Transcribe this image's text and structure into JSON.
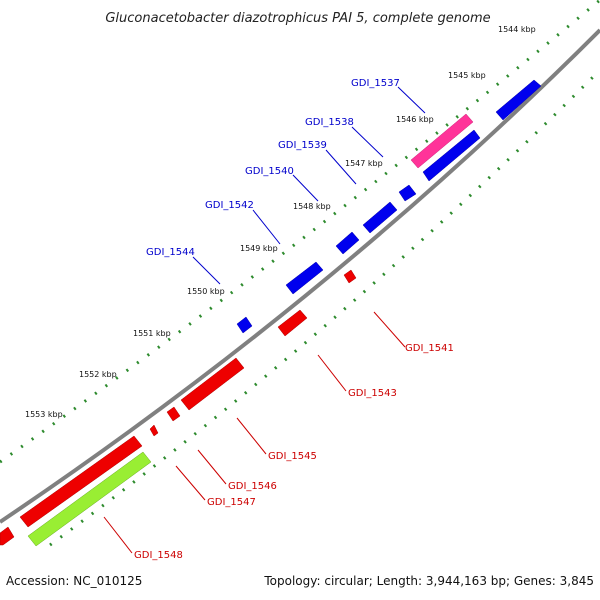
{
  "title": "Gluconacetobacter diazotrophicus PAI 5, complete genome",
  "footer": {
    "accession": "Accession: NC_010125",
    "summary": "Topology: circular; Length: 3,944,163 bp; Genes: 3,845"
  },
  "colors": {
    "backbone": "#808080",
    "tick_outer": "#2e8b2e",
    "tick_inner": "#2e8b2e",
    "forward_gene": "#0000ee",
    "reverse_gene": "#ee0000",
    "highlight_pink": "#ff3399",
    "highlight_green": "#99ee33",
    "label_forward": "#0000cc",
    "label_reverse": "#cc0000"
  },
  "kbp_labels": [
    "1544 kbp",
    "1545 kbp",
    "1546 kbp",
    "1547 kbp",
    "1548 kbp",
    "1549 kbp",
    "1550 kbp",
    "1551 kbp",
    "1552 kbp",
    "1553 kbp"
  ],
  "forward_genes": [
    "GDI_1537",
    "GDI_1538",
    "GDI_1539",
    "GDI_1540",
    "GDI_1542",
    "GDI_1544"
  ],
  "reverse_genes": [
    "GDI_1541",
    "GDI_1543",
    "GDI_1545",
    "GDI_1546",
    "GDI_1547",
    "GDI_1548"
  ]
}
